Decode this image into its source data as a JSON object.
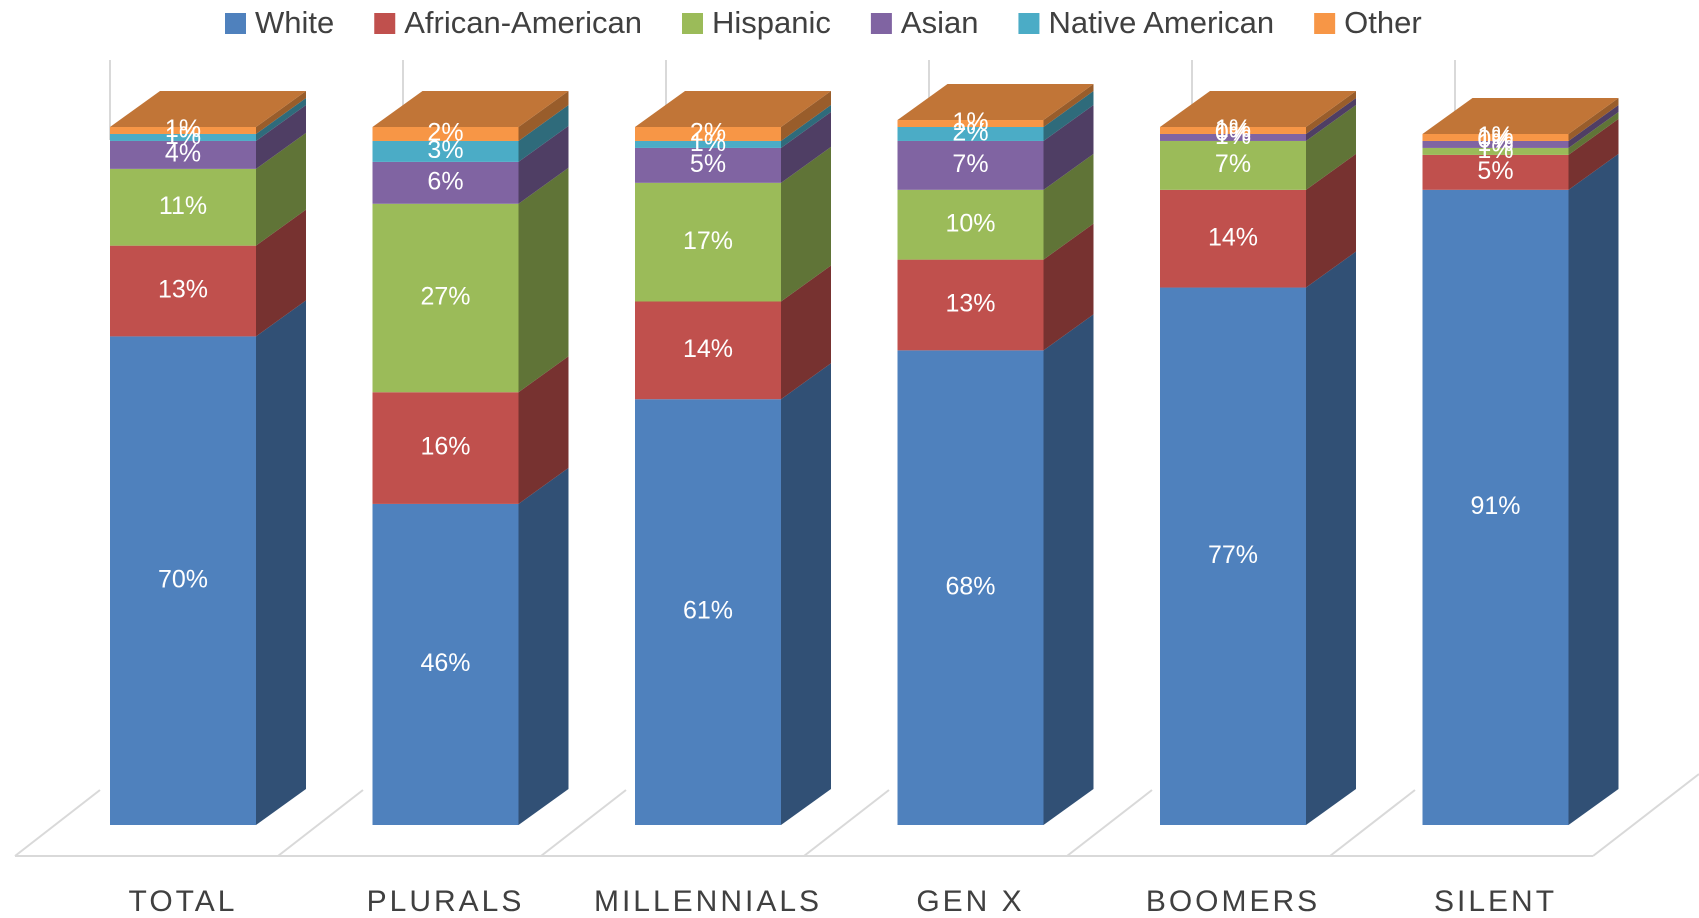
{
  "chart_data": {
    "type": "stacked-bar-3d",
    "categories": [
      "TOTAL",
      "PLURALS",
      "MILLENNIALS",
      "GEN X",
      "BOOMERS",
      "SILENT"
    ],
    "ylim": [
      0,
      100
    ],
    "series": [
      {
        "name": "White",
        "color": "#4f81bd",
        "values": [
          70,
          46,
          61,
          68,
          77,
          91
        ],
        "value_labels": [
          "70%",
          "46%",
          "61%",
          "68%",
          "77%",
          "91%"
        ]
      },
      {
        "name": "African-American",
        "color": "#c0504d",
        "values": [
          13,
          16,
          14,
          13,
          14,
          5
        ],
        "value_labels": [
          "13%",
          "16%",
          "14%",
          "13%",
          "14%",
          "5%"
        ]
      },
      {
        "name": "Hispanic",
        "color": "#9bbb59",
        "values": [
          11,
          27,
          17,
          10,
          7,
          1
        ],
        "value_labels": [
          "11%",
          "27%",
          "17%",
          "10%",
          "7%",
          "1%"
        ]
      },
      {
        "name": "Asian",
        "color": "#8064a2",
        "values": [
          4,
          6,
          5,
          7,
          1,
          1
        ],
        "value_labels": [
          "4%",
          "6%",
          "5%",
          "7%",
          "1%",
          "1%"
        ]
      },
      {
        "name": "Native American",
        "color": "#4bacc6",
        "values": [
          1,
          3,
          1,
          2,
          0,
          0
        ],
        "value_labels": [
          "1%",
          "3%",
          "1%",
          "2%",
          "0%",
          "0%"
        ]
      },
      {
        "name": "Other",
        "color": "#f79646",
        "values": [
          1,
          2,
          2,
          1,
          1,
          1
        ],
        "value_labels": [
          "1%",
          "2%",
          "2%",
          "1%",
          "1%",
          "1%"
        ]
      }
    ]
  }
}
